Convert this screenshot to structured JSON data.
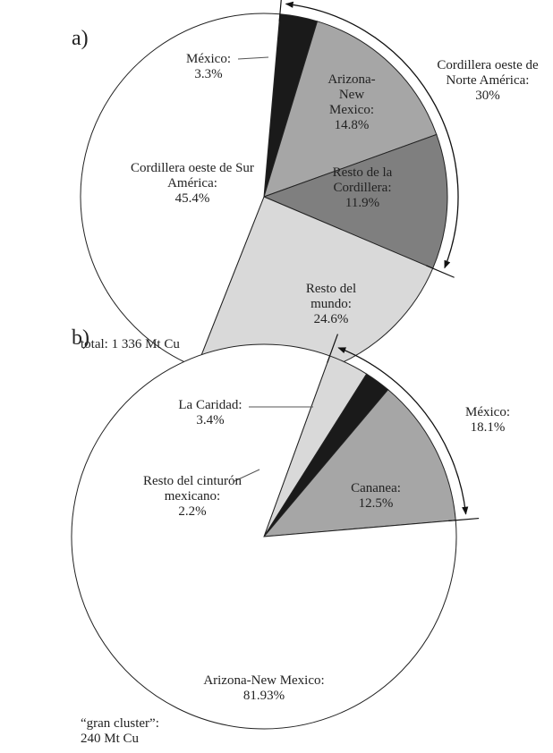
{
  "chart_data": [
    {
      "type": "pie",
      "panel_label": "a)",
      "categories": [
        "México:",
        "Arizona-New Mexico:",
        "Resto de la Cordillera:",
        "Resto del mundo:",
        "Cordillera oeste de Sur América:"
      ],
      "values": [
        3.3,
        14.8,
        11.9,
        24.6,
        45.4
      ],
      "value_labels": [
        "3.3%",
        "14.8%",
        "11.9%",
        "24.6%",
        "45.4%"
      ],
      "colors": [
        "#1a1a1a",
        "#a6a6a6",
        "#7f7f7f",
        "#d9d9d9",
        "#ffffff"
      ],
      "group": {
        "label": "Cordillera oeste de Norte América:",
        "value": 30,
        "value_label": "30%"
      },
      "note": "total: 1 336 Mt Cu"
    },
    {
      "type": "pie",
      "panel_label": "b)",
      "categories": [
        "La Caridad:",
        "Resto del cinturón mexicano:",
        "Cananea:",
        "Arizona-New Mexico:"
      ],
      "values": [
        3.4,
        2.2,
        12.5,
        81.93
      ],
      "value_labels": [
        "3.4%",
        "2.2%",
        "12.5%",
        "81.93%"
      ],
      "colors": [
        "#d9d9d9",
        "#1a1a1a",
        "#a6a6a6",
        "#ffffff"
      ],
      "group": {
        "label": "México:",
        "value": 18.1,
        "value_label": "18.1%"
      },
      "note": "“gran cluster”: 240 Mt Cu"
    }
  ]
}
